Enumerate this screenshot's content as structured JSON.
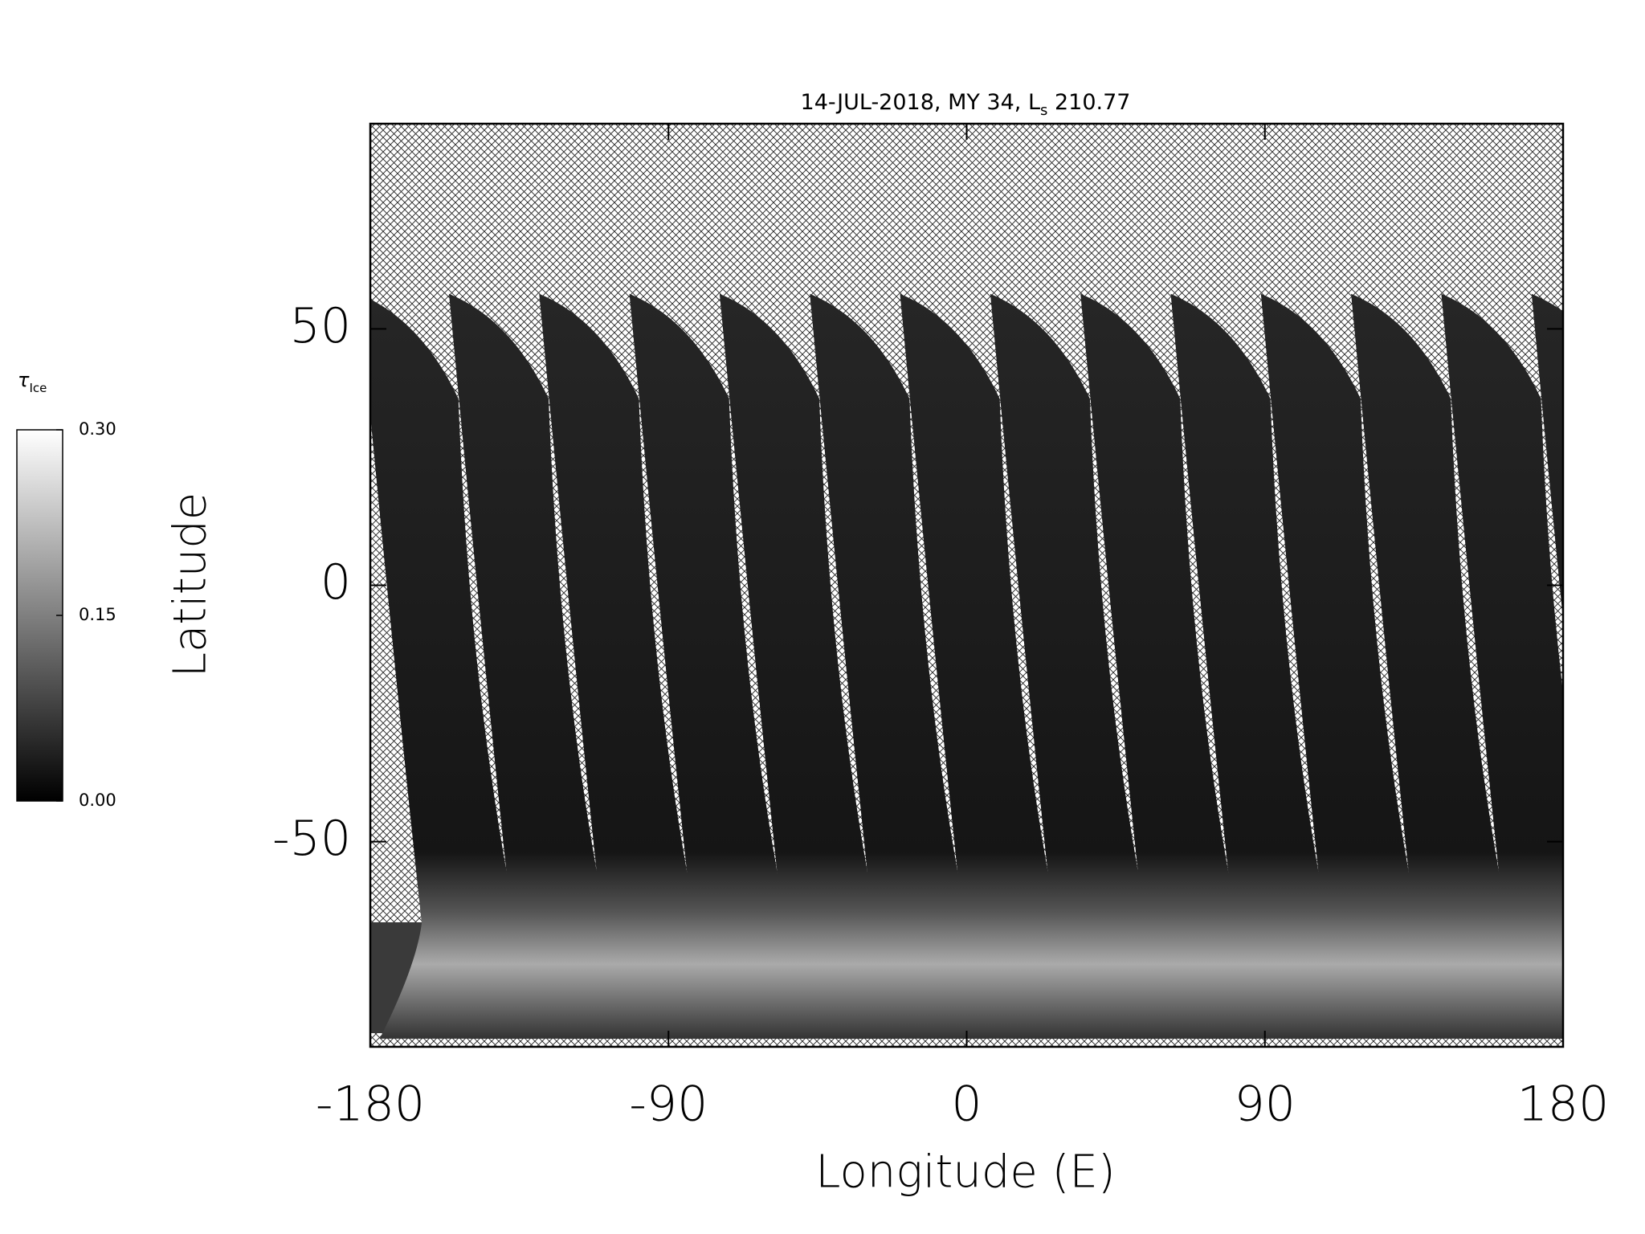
{
  "chart_data": {
    "type": "image-map",
    "title": [
      "14-JUL-2018, MY 34,  L",
      "s",
      " 210.77"
    ],
    "xlabel": "Longitude (E)",
    "ylabel": "Latitude",
    "xlim": [
      -180,
      180
    ],
    "xticks": [
      -180,
      -90,
      0,
      90,
      180
    ],
    "ylim": [
      -90,
      90
    ],
    "yticks": [
      -50,
      0,
      50
    ],
    "colorbar": {
      "label": [
        "τ",
        "Ice"
      ],
      "lim": [
        0,
        0.3
      ],
      "colors": [
        "#000000",
        "#ffffff"
      ],
      "ticks": [
        {
          "value": 0,
          "label": "0.00"
        },
        {
          "value": 0.15,
          "label": "0.15"
        },
        {
          "value": 0.3,
          "label": "0.30"
        }
      ]
    }
  }
}
